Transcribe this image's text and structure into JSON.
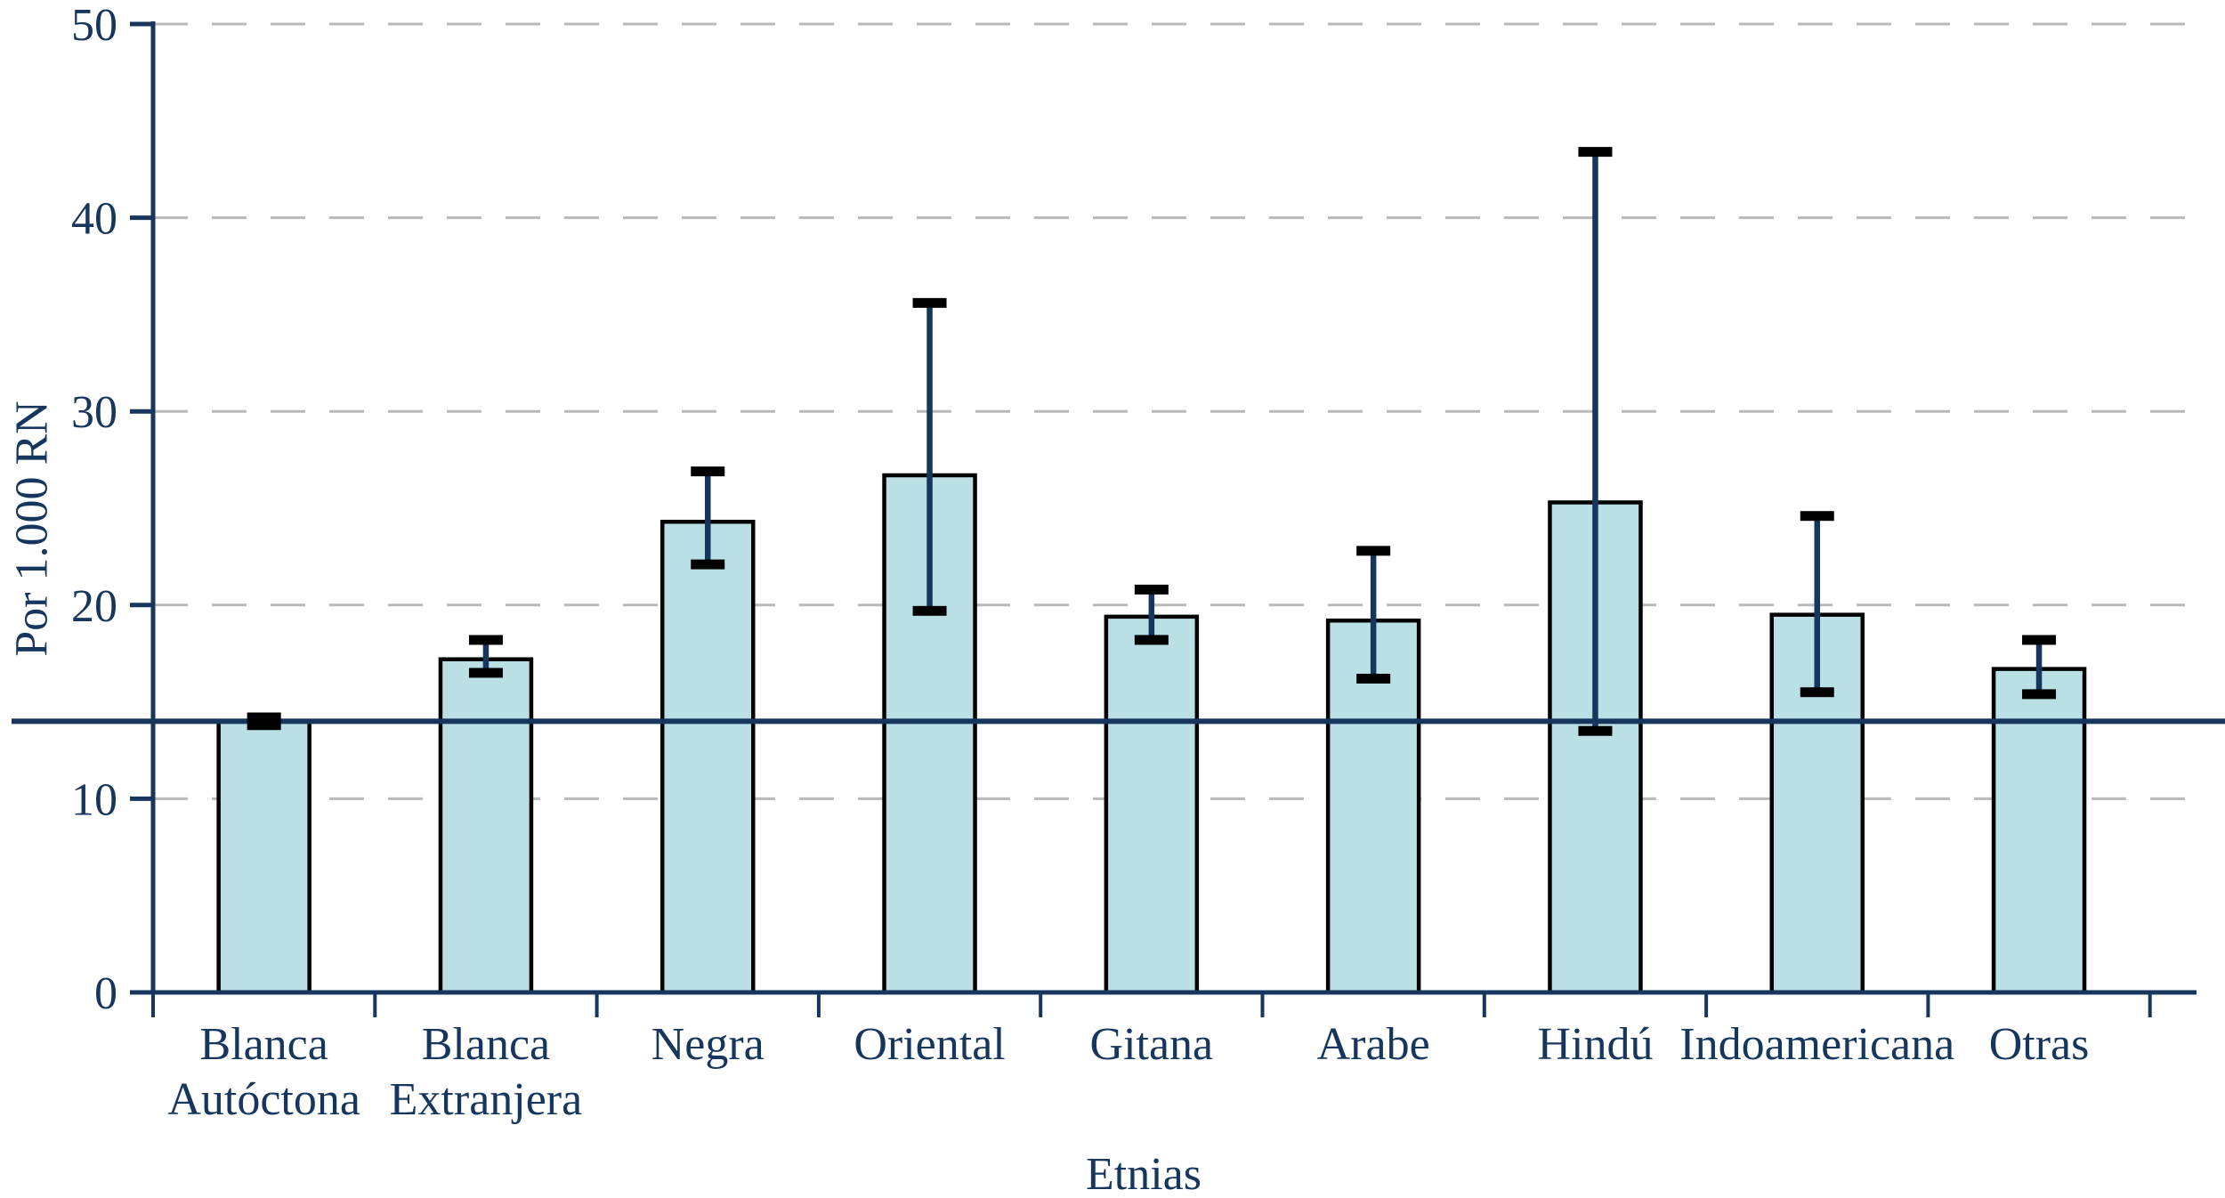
{
  "chart_data": {
    "type": "bar",
    "title": "",
    "xlabel": "Etnias",
    "ylabel": "Por 1.000 RN",
    "categories": [
      [
        "Blanca",
        "Autóctona"
      ],
      [
        "Blanca",
        "Extranjera"
      ],
      [
        "Negra"
      ],
      [
        "Oriental"
      ],
      [
        "Gitana"
      ],
      [
        "Arabe"
      ],
      [
        "Hindú"
      ],
      [
        "Indoamericana"
      ],
      [
        "Otras"
      ]
    ],
    "values": [
      14.0,
      17.2,
      24.3,
      26.7,
      19.4,
      19.2,
      25.3,
      19.5,
      16.7
    ],
    "error_bars": {
      "low": [
        13.8,
        16.5,
        22.1,
        19.7,
        18.2,
        16.2,
        13.5,
        15.5,
        15.4
      ],
      "high": [
        14.2,
        18.2,
        26.9,
        35.6,
        20.8,
        22.8,
        43.4,
        24.6,
        18.2
      ]
    },
    "reference_line": {
      "value": 14
    },
    "ylim": [
      0,
      50
    ],
    "yticks": [
      0,
      10,
      20,
      30,
      40,
      50
    ],
    "grid": {
      "horizontal": true,
      "style": "dashed",
      "at": [
        10,
        20,
        30,
        40,
        50
      ]
    },
    "legend": "none",
    "colors": {
      "bar_fill": "#badfe5",
      "bar_border": "#000000",
      "error_stem": "#17365d",
      "error_cap": "#000000",
      "axis": "#17365d",
      "text": "#17365d",
      "gridline": "#b9b9b9",
      "background": "#ffffff"
    }
  }
}
